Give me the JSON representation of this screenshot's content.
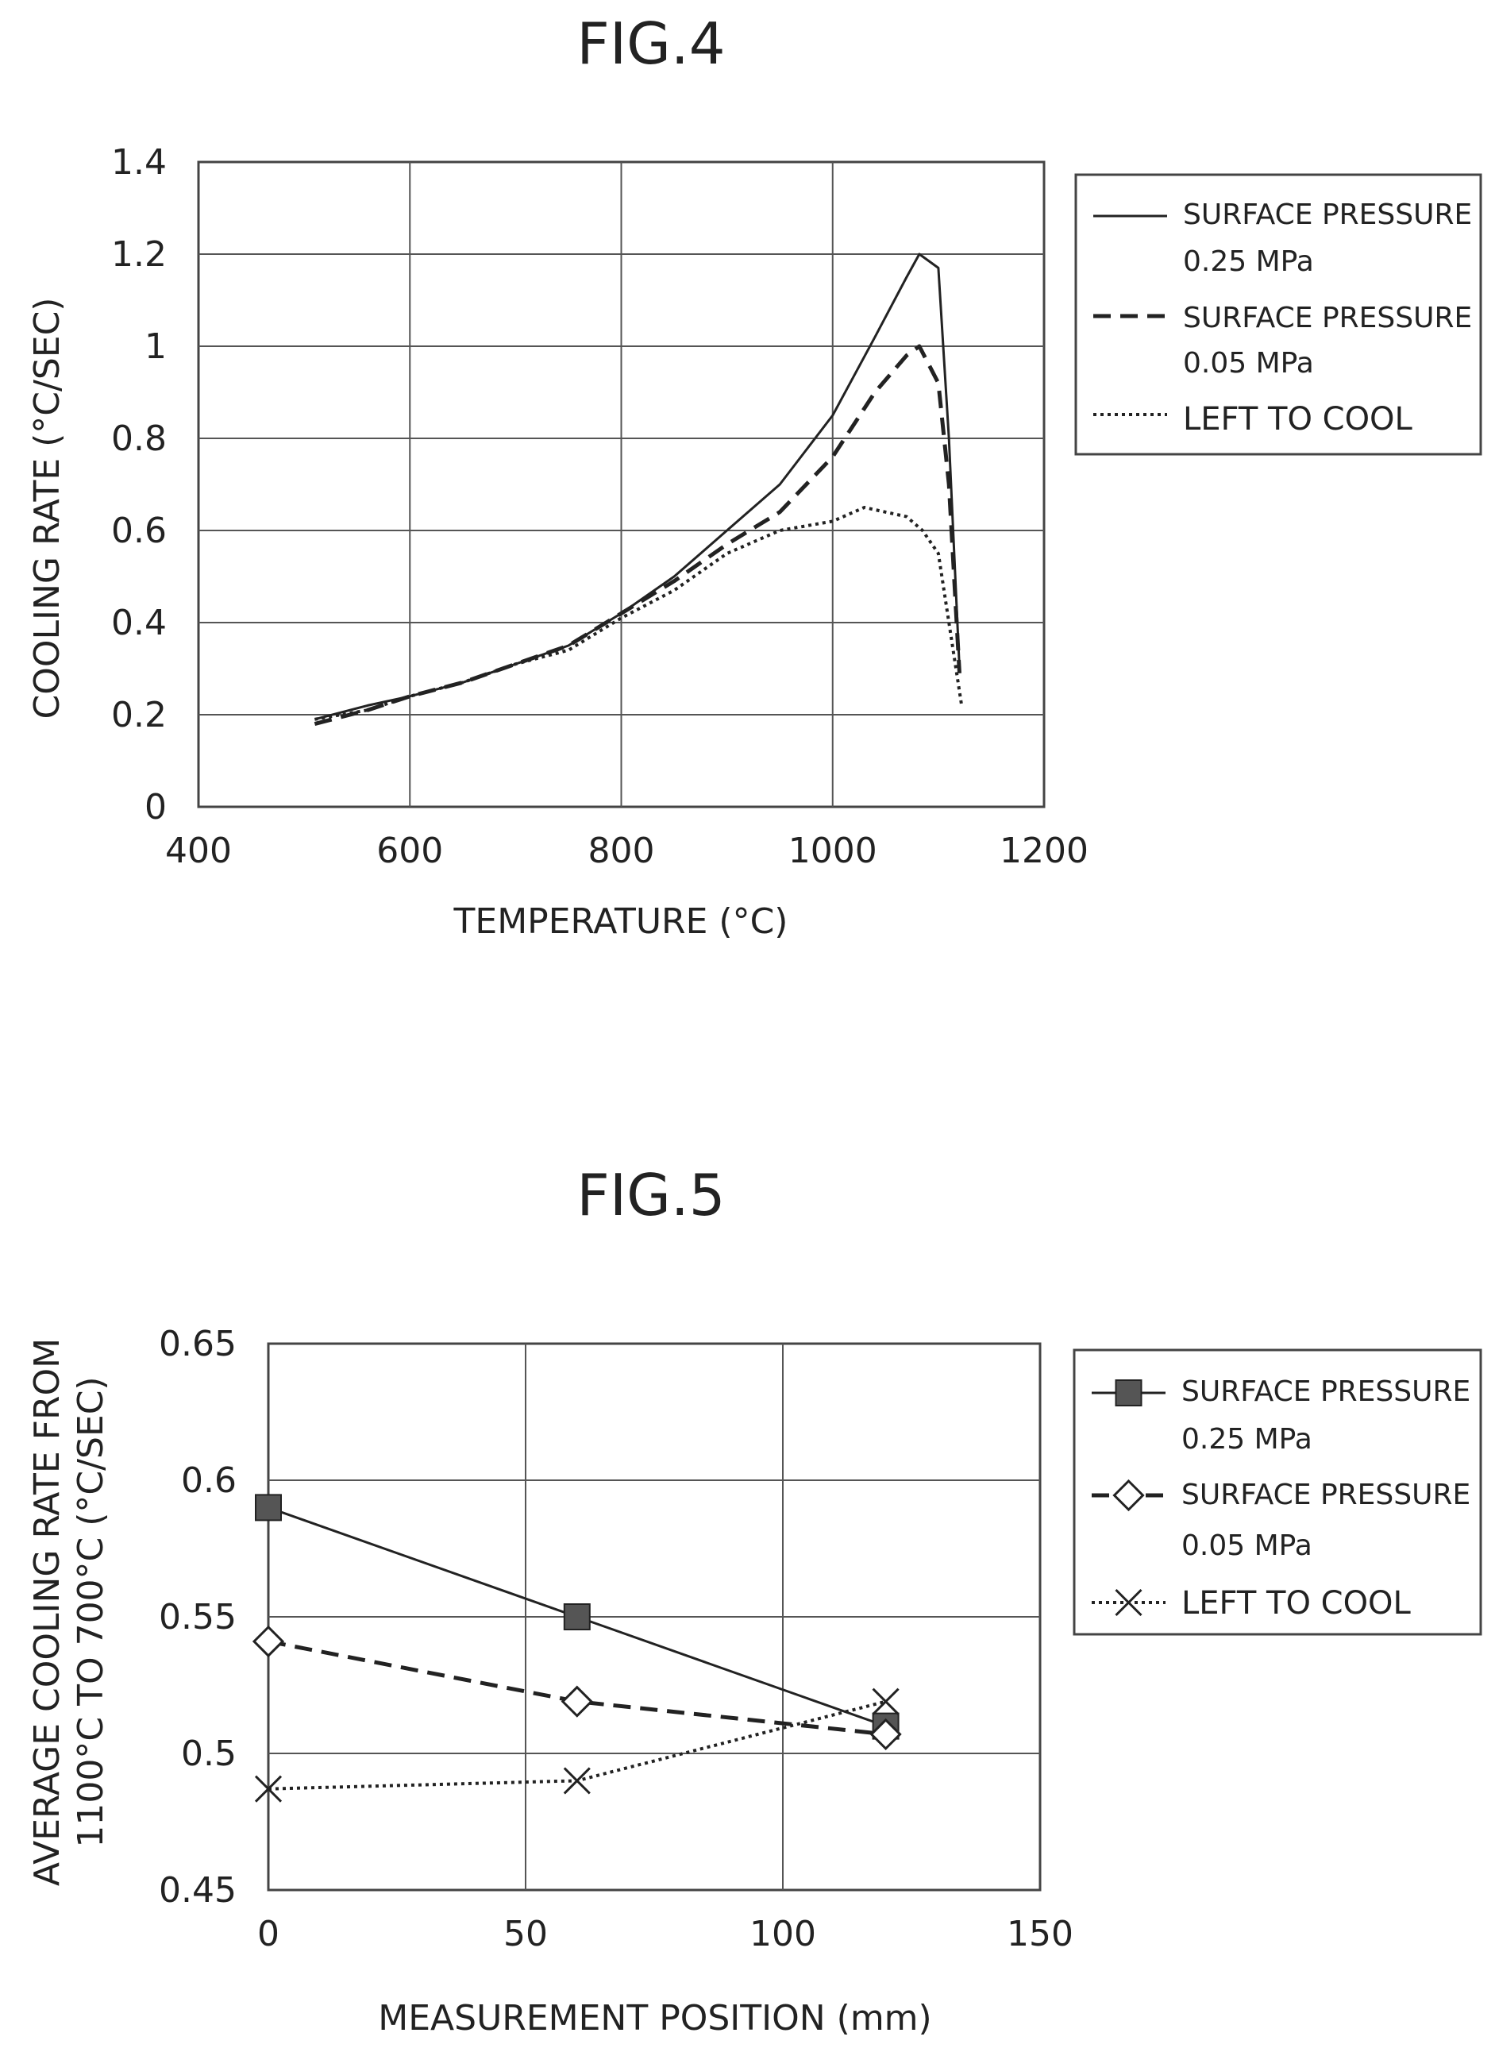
{
  "chart_data": [
    {
      "id": "fig4",
      "type": "line",
      "title": "FIG.4",
      "xlabel": "TEMPERATURE (°C)",
      "ylabel": "COOLING RATE (°C/SEC)",
      "xlim": [
        400,
        1200
      ],
      "ylim": [
        0,
        1.4
      ],
      "xticks": [
        "400",
        "600",
        "800",
        "1000",
        "1200"
      ],
      "yticks": [
        "0",
        "0.2",
        "0.4",
        "0.6",
        "0.8",
        "1",
        "1.2",
        "1.4"
      ],
      "grid": true,
      "legend_position": "right",
      "series": [
        {
          "name": [
            "SURFACE PRESSURE",
            "0.25 MPa"
          ],
          "style": "solid",
          "x": [
            510,
            560,
            600,
            650,
            700,
            750,
            800,
            850,
            900,
            950,
            1000,
            1040,
            1070,
            1082,
            1100,
            1110,
            1120
          ],
          "y": [
            0.19,
            0.22,
            0.24,
            0.27,
            0.31,
            0.35,
            0.42,
            0.5,
            0.6,
            0.7,
            0.85,
            1.02,
            1.15,
            1.2,
            1.17,
            0.8,
            0.3
          ]
        },
        {
          "name": [
            "SURFACE PRESSURE",
            "0.05 MPa"
          ],
          "style": "dashed",
          "x": [
            510,
            560,
            600,
            650,
            700,
            750,
            800,
            850,
            900,
            950,
            1000,
            1040,
            1070,
            1082,
            1100,
            1110,
            1120
          ],
          "y": [
            0.18,
            0.21,
            0.24,
            0.27,
            0.31,
            0.35,
            0.42,
            0.49,
            0.57,
            0.64,
            0.76,
            0.9,
            0.98,
            1.0,
            0.92,
            0.7,
            0.29
          ]
        },
        {
          "name": [
            "LEFT TO COOL"
          ],
          "style": "dotted",
          "x": [
            510,
            560,
            600,
            650,
            700,
            750,
            800,
            850,
            900,
            950,
            1000,
            1020,
            1030,
            1050,
            1070,
            1085,
            1100,
            1110,
            1122
          ],
          "y": [
            0.19,
            0.21,
            0.24,
            0.27,
            0.31,
            0.34,
            0.41,
            0.47,
            0.55,
            0.6,
            0.62,
            0.64,
            0.65,
            0.64,
            0.63,
            0.6,
            0.55,
            0.4,
            0.22
          ]
        }
      ]
    },
    {
      "id": "fig5",
      "type": "line",
      "title": "FIG.5",
      "xlabel": "MEASUREMENT POSITION (mm)",
      "ylabel": [
        "AVERAGE COOLING RATE FROM",
        "1100°C TO 700°C (°C/SEC)"
      ],
      "xlim": [
        0,
        150
      ],
      "ylim": [
        0.45,
        0.65
      ],
      "xticks": [
        "0",
        "50",
        "100",
        "150"
      ],
      "yticks": [
        "0.45",
        "0.5",
        "0.55",
        "0.6",
        "0.65"
      ],
      "grid": true,
      "legend_position": "right",
      "series": [
        {
          "name": [
            "SURFACE PRESSURE",
            "0.25 MPa"
          ],
          "style": "solid",
          "marker": "square",
          "x": [
            0,
            60,
            120
          ],
          "y": [
            0.59,
            0.55,
            0.51
          ]
        },
        {
          "name": [
            "SURFACE PRESSURE",
            "0.05 MPa"
          ],
          "style": "dashed",
          "marker": "diamond",
          "x": [
            0,
            60,
            120
          ],
          "y": [
            0.541,
            0.519,
            0.507
          ]
        },
        {
          "name": [
            "LEFT TO COOL"
          ],
          "style": "dotted",
          "marker": "x",
          "x": [
            0,
            60,
            120
          ],
          "y": [
            0.487,
            0.49,
            0.519
          ]
        }
      ]
    }
  ]
}
